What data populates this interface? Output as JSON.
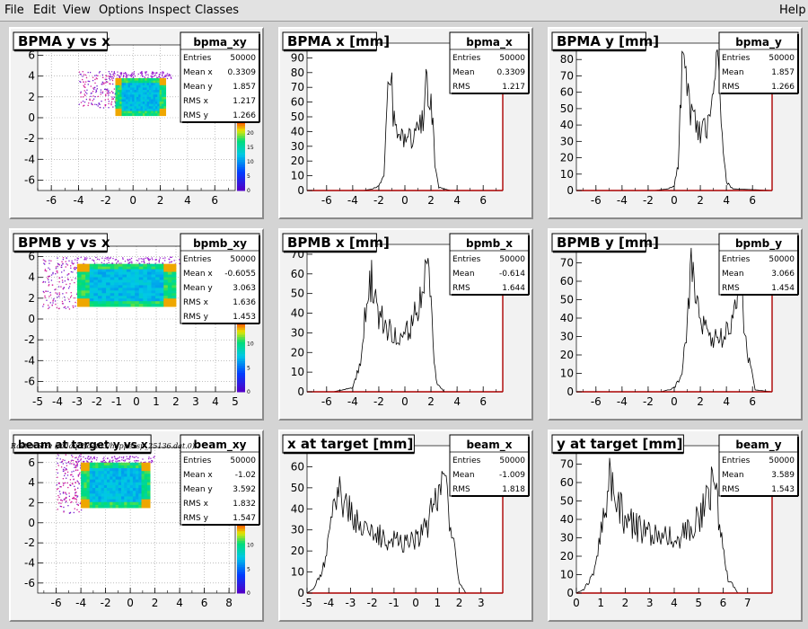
{
  "menubar": {
    "items": [
      "File",
      "Edit",
      "View",
      "Options",
      "Inspect",
      "Classes"
    ],
    "help": "Help"
  },
  "raster_label": "Raster Size (/adaql2/data3/happexsp_25136.dat.0)",
  "colors": {
    "pad_bg": "#f2f2f2",
    "hist_line": "#000000",
    "axis_red": "#aa0000",
    "grid": "#999999"
  },
  "chart_data": [
    {
      "id": "bpma_xy",
      "type": "heatmap",
      "title": "BPMA y vs x",
      "stats": [
        [
          "bpma_xy",
          ""
        ],
        [
          "Entries",
          "50000"
        ],
        [
          "Mean x",
          "0.3309"
        ],
        [
          "Mean y",
          "1.857"
        ],
        [
          "RMS x",
          "1.217"
        ],
        [
          "RMS y",
          "1.266"
        ]
      ],
      "xlim": [
        -7,
        7.5
      ],
      "ylim": [
        -7,
        7
      ],
      "xticks": [
        -6,
        -4,
        -2,
        0,
        2,
        4,
        6
      ],
      "yticks": [
        -6,
        -4,
        -2,
        0,
        2,
        4,
        6
      ],
      "grid": true,
      "zticks": [
        0,
        5,
        10,
        15,
        20,
        25
      ],
      "rect": {
        "x": [
          -1.3,
          2.4
        ],
        "y": [
          0.2,
          3.8
        ]
      },
      "halo": {
        "x": [
          -4,
          -1.3
        ],
        "y": [
          1,
          4.5
        ]
      }
    },
    {
      "id": "bpma_x",
      "type": "line",
      "title": "BPMA x [mm]",
      "stats": [
        [
          "bpma_x",
          ""
        ],
        [
          "Entries",
          "50000"
        ],
        [
          "Mean",
          "0.3309"
        ],
        [
          "RMS",
          "1.217"
        ]
      ],
      "xlim": [
        -7.5,
        7.5
      ],
      "ylim": [
        0,
        100
      ],
      "xticks": [
        -6,
        -4,
        -2,
        0,
        2,
        4,
        6
      ],
      "yticks": [
        0,
        10,
        20,
        30,
        40,
        50,
        60,
        70,
        80,
        90,
        100
      ],
      "x": [
        -7.5,
        -3.2,
        -2.5,
        -2.0,
        -1.6,
        -1.3,
        -1.1,
        -0.9,
        -0.5,
        0.0,
        0.5,
        1.0,
        1.4,
        1.7,
        2.0,
        2.3,
        2.6,
        3.5,
        7.5
      ],
      "values": [
        0,
        0,
        1,
        3,
        12,
        65,
        85,
        55,
        40,
        33,
        35,
        40,
        52,
        75,
        68,
        20,
        2,
        0,
        0
      ]
    },
    {
      "id": "bpma_y",
      "type": "line",
      "title": "BPMA y [mm]",
      "stats": [
        [
          "bpma_y",
          ""
        ],
        [
          "Entries",
          "50000"
        ],
        [
          "Mean",
          "1.857"
        ],
        [
          "RMS",
          "1.266"
        ]
      ],
      "xlim": [
        -7.5,
        7.5
      ],
      "ylim": [
        0,
        90
      ],
      "xticks": [
        -6,
        -4,
        -2,
        0,
        2,
        4,
        6
      ],
      "yticks": [
        0,
        10,
        20,
        30,
        40,
        50,
        60,
        70,
        80,
        90
      ],
      "x": [
        -7.5,
        -1.5,
        -0.5,
        0.0,
        0.3,
        0.6,
        0.9,
        1.5,
        2.0,
        2.5,
        3.0,
        3.3,
        3.6,
        4.0,
        4.5,
        7.5
      ],
      "values": [
        0,
        0,
        1,
        3,
        15,
        80,
        62,
        42,
        35,
        40,
        55,
        78,
        40,
        5,
        1,
        0
      ]
    },
    {
      "id": "bpmb_xy",
      "type": "heatmap",
      "title": "BPMB y vs x",
      "stats": [
        [
          "bpmb_xy",
          ""
        ],
        [
          "Entries",
          "50000"
        ],
        [
          "Mean x",
          "-0.6055"
        ],
        [
          "Mean y",
          "3.063"
        ],
        [
          "RMS x",
          "1.636"
        ],
        [
          "RMS y",
          "1.453"
        ]
      ],
      "xlim": [
        -5,
        5
      ],
      "ylim": [
        -7,
        7
      ],
      "xticks": [
        -5,
        -4,
        -3,
        -2,
        -1,
        0,
        1,
        2,
        3,
        4,
        5
      ],
      "yticks": [
        -6,
        -4,
        -2,
        0,
        2,
        4,
        6
      ],
      "grid": true,
      "zticks": [
        0,
        5,
        10,
        15
      ],
      "rect": {
        "x": [
          -3,
          2
        ],
        "y": [
          1.2,
          5.3
        ]
      },
      "halo": {
        "x": [
          -4.8,
          -3
        ],
        "y": [
          1,
          6
        ]
      }
    },
    {
      "id": "bpmb_x",
      "type": "line",
      "title": "BPMB x [mm]",
      "stats": [
        [
          "bpmb_x",
          ""
        ],
        [
          "Entries",
          "50000"
        ],
        [
          "Mean",
          "-0.614"
        ],
        [
          "RMS",
          "1.644"
        ]
      ],
      "xlim": [
        -7.5,
        7.5
      ],
      "ylim": [
        0,
        75
      ],
      "xticks": [
        -6,
        -4,
        -2,
        0,
        2,
        4,
        6
      ],
      "yticks": [
        0,
        10,
        20,
        30,
        40,
        50,
        60,
        70
      ],
      "x": [
        -7.5,
        -5.5,
        -4.0,
        -3.4,
        -3.0,
        -2.7,
        -2.4,
        -2.0,
        -1.5,
        -1.0,
        -0.5,
        0.0,
        0.5,
        1.0,
        1.4,
        1.7,
        2.0,
        2.4,
        3.0,
        7.5
      ],
      "values": [
        0,
        0,
        2,
        15,
        45,
        60,
        50,
        40,
        33,
        30,
        28,
        30,
        35,
        45,
        55,
        70,
        40,
        5,
        0,
        0
      ]
    },
    {
      "id": "bpmb_y",
      "type": "line",
      "title": "BPMB y [mm]",
      "stats": [
        [
          "bpmb_y",
          ""
        ],
        [
          "Entries",
          "50000"
        ],
        [
          "Mean",
          "3.066"
        ],
        [
          "RMS",
          "1.454"
        ]
      ],
      "xlim": [
        -7.5,
        7.5
      ],
      "ylim": [
        0,
        80
      ],
      "xticks": [
        -6,
        -4,
        -2,
        0,
        2,
        4,
        6
      ],
      "yticks": [
        0,
        10,
        20,
        30,
        40,
        50,
        60,
        70,
        80
      ],
      "x": [
        -7.5,
        -1.0,
        0.0,
        0.6,
        1.0,
        1.3,
        1.6,
        2.0,
        2.5,
        3.0,
        3.5,
        4.0,
        4.5,
        4.8,
        5.1,
        5.5,
        6.2,
        7.5
      ],
      "values": [
        0,
        0,
        2,
        10,
        40,
        70,
        55,
        40,
        33,
        30,
        28,
        32,
        38,
        50,
        62,
        25,
        1,
        0
      ]
    },
    {
      "id": "beam_xy",
      "type": "heatmap",
      "title": "beam at target y vs x",
      "stats": [
        [
          "beam_xy",
          ""
        ],
        [
          "Entries",
          "50000"
        ],
        [
          "Mean x",
          "-1.02"
        ],
        [
          "Mean y",
          "3.592"
        ],
        [
          "RMS x",
          "1.832"
        ],
        [
          "RMS y",
          "1.547"
        ]
      ],
      "xlim": [
        -7.5,
        8.5
      ],
      "ylim": [
        -7,
        7.5
      ],
      "xticks": [
        -6,
        -4,
        -2,
        0,
        2,
        4,
        6,
        8
      ],
      "yticks": [
        -6,
        -4,
        -2,
        0,
        2,
        4,
        6
      ],
      "grid": true,
      "zticks": [
        0,
        5,
        10,
        15
      ],
      "rect": {
        "x": [
          -4,
          1.6
        ],
        "y": [
          1.5,
          6
        ]
      },
      "halo": {
        "x": [
          -6,
          -4
        ],
        "y": [
          1,
          7
        ]
      }
    },
    {
      "id": "beam_x",
      "type": "line",
      "title": "x at target [mm]",
      "stats": [
        [
          "beam_x",
          ""
        ],
        [
          "Entries",
          "50000"
        ],
        [
          "Mean",
          "-1.009"
        ],
        [
          "RMS",
          "1.818"
        ]
      ],
      "xlim": [
        -5,
        4
      ],
      "ylim": [
        0,
        70
      ],
      "xticks": [
        -5,
        -4,
        -3,
        -2,
        -1,
        0,
        1,
        2,
        3
      ],
      "yticks": [
        0,
        10,
        20,
        30,
        40,
        50,
        60,
        70
      ],
      "x": [
        -5.0,
        -4.7,
        -4.3,
        -3.9,
        -3.6,
        -3.3,
        -3.0,
        -2.5,
        -2.0,
        -1.5,
        -1.0,
        -0.5,
        0.0,
        0.5,
        0.9,
        1.2,
        1.4,
        1.7,
        2.0,
        2.3,
        4.0
      ],
      "values": [
        0,
        2,
        10,
        30,
        50,
        45,
        38,
        32,
        28,
        26,
        25,
        25,
        26,
        30,
        45,
        60,
        50,
        25,
        5,
        0,
        0
      ]
    },
    {
      "id": "beam_y",
      "type": "line",
      "title": "y at target [mm]",
      "stats": [
        [
          "beam_y",
          ""
        ],
        [
          "Entries",
          "50000"
        ],
        [
          "Mean",
          "3.589"
        ],
        [
          "RMS",
          "1.543"
        ]
      ],
      "xlim": [
        0,
        8
      ],
      "ylim": [
        0,
        80
      ],
      "xticks": [
        0,
        1,
        2,
        3,
        4,
        5,
        6,
        7
      ],
      "yticks": [
        0,
        10,
        20,
        30,
        40,
        50,
        60,
        70,
        80
      ],
      "x": [
        0.0,
        0.3,
        0.7,
        1.1,
        1.4,
        1.6,
        1.9,
        2.5,
        3.0,
        3.5,
        4.0,
        4.5,
        5.0,
        5.4,
        5.6,
        5.9,
        6.2,
        6.6,
        8.0
      ],
      "values": [
        0,
        2,
        10,
        40,
        65,
        55,
        42,
        35,
        32,
        30,
        30,
        32,
        40,
        55,
        62,
        35,
        8,
        0,
        0
      ]
    }
  ]
}
